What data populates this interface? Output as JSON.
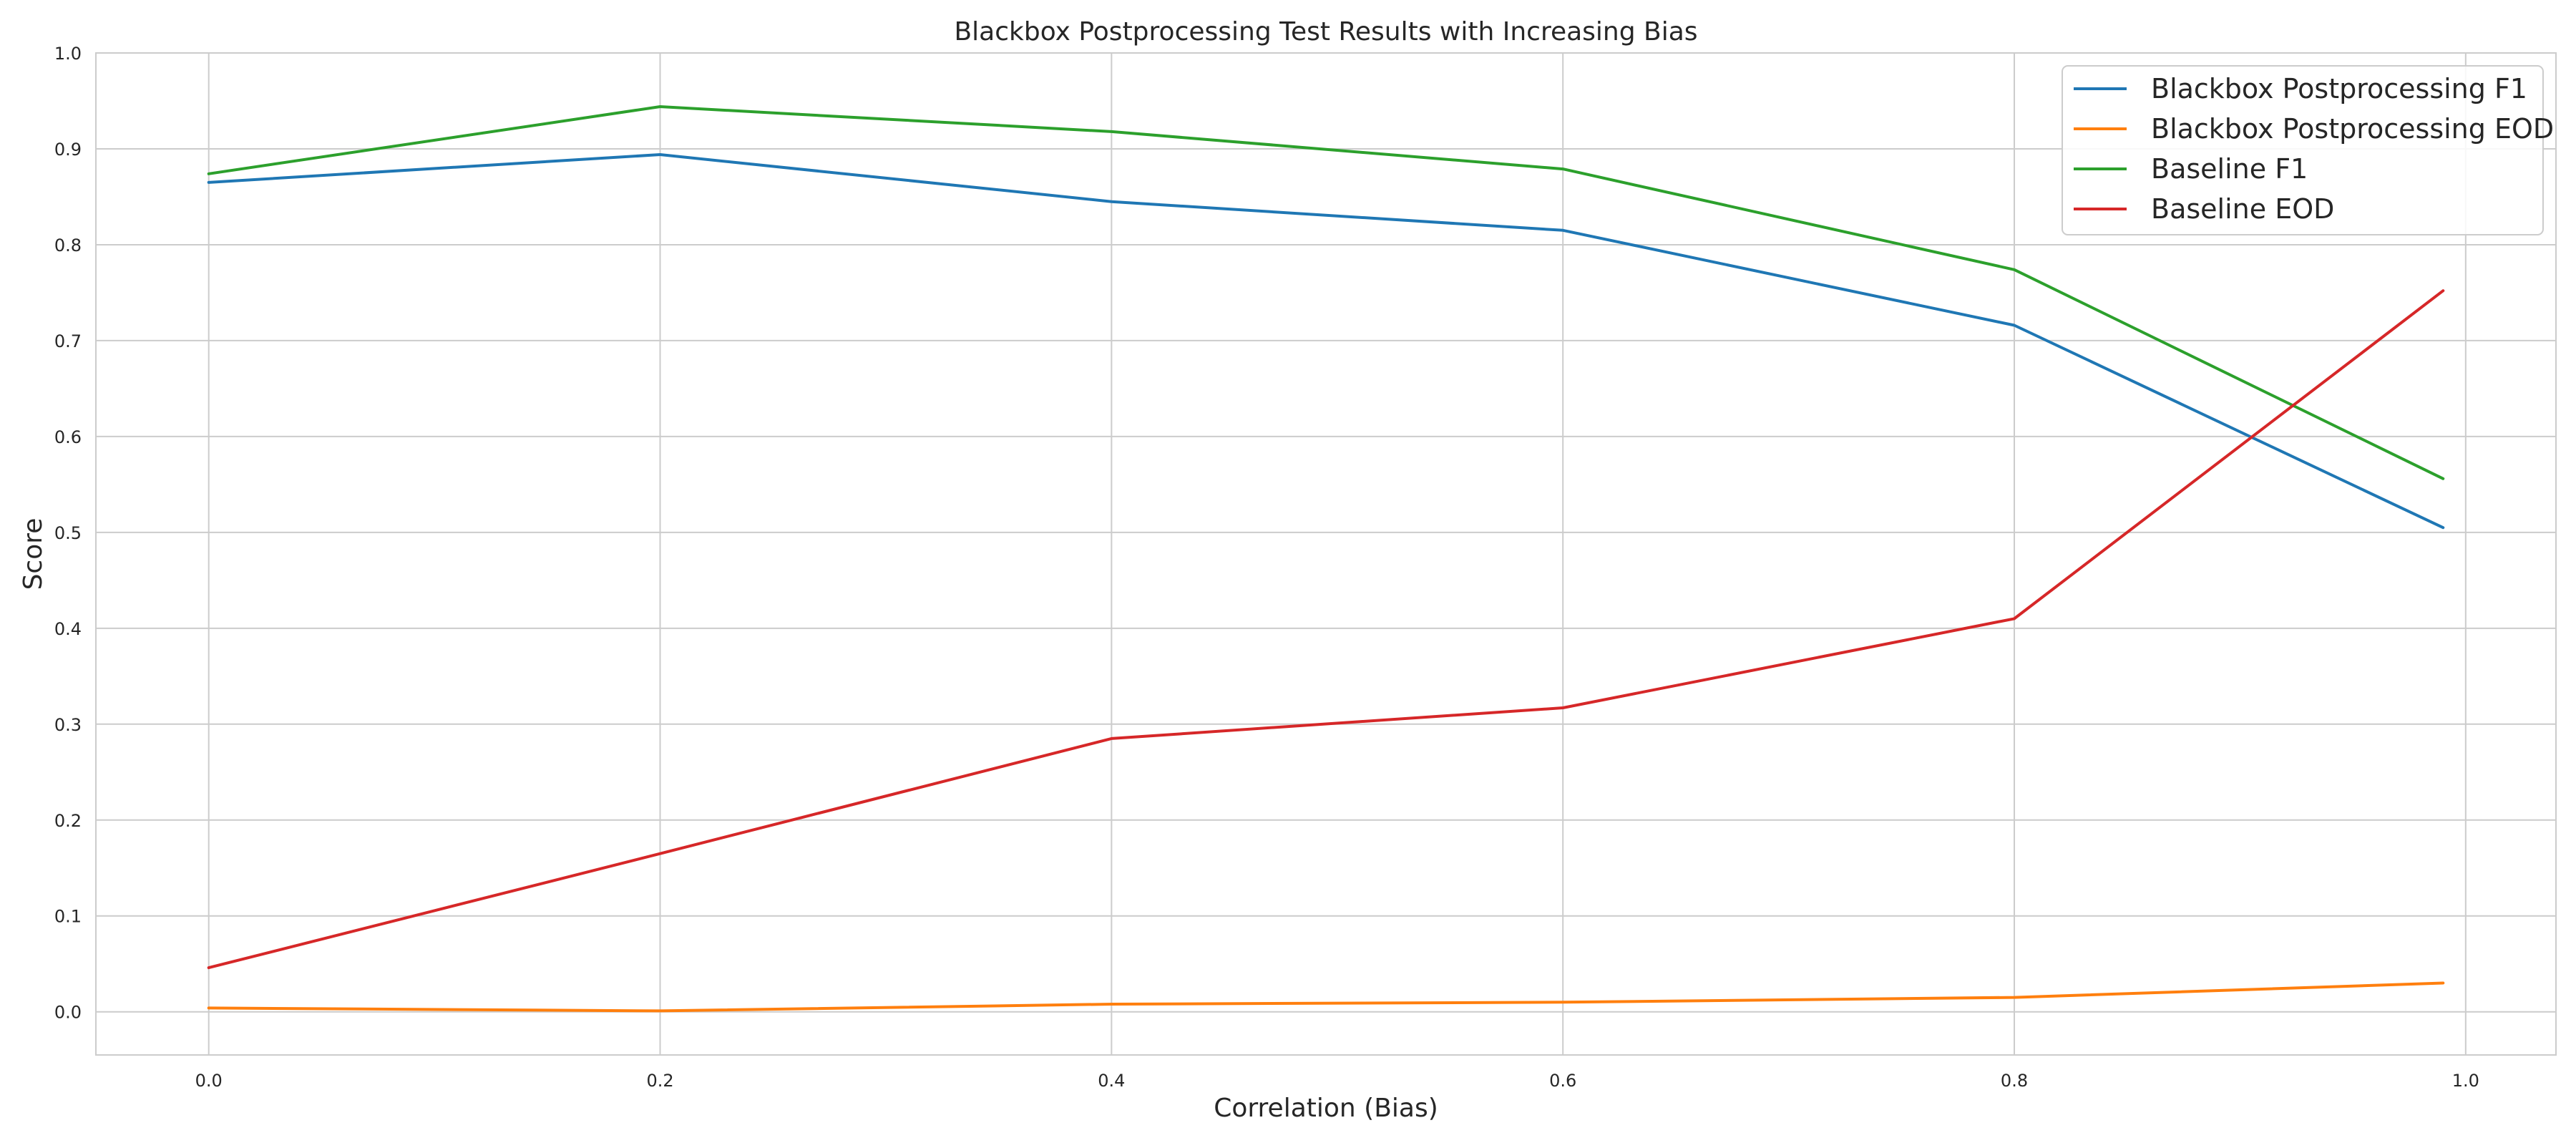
{
  "chart_data": {
    "type": "line",
    "title": "Blackbox Postprocessing Test Results with Increasing Bias",
    "xlabel": "Correlation (Bias)",
    "ylabel": "Score",
    "xlim": [
      -0.05,
      1.04
    ],
    "ylim": [
      -0.045,
      1.0
    ],
    "xticks": [
      "0.0",
      "0.2",
      "0.4",
      "0.6",
      "0.8",
      "1.0"
    ],
    "xtick_values": [
      0.0,
      0.2,
      0.4,
      0.6,
      0.8,
      1.0
    ],
    "yticks": [
      "0.0",
      "0.1",
      "0.2",
      "0.3",
      "0.4",
      "0.5",
      "0.6",
      "0.7",
      "0.8",
      "0.9",
      "1.0"
    ],
    "ytick_values": [
      0.0,
      0.1,
      0.2,
      0.3,
      0.4,
      0.5,
      0.6,
      0.7,
      0.8,
      0.9,
      1.0
    ],
    "grid": true,
    "legend_position": "top-right",
    "x": [
      0.0,
      0.2,
      0.4,
      0.6,
      0.8,
      0.99
    ],
    "series": [
      {
        "name": "Blackbox Postprocessing F1",
        "color": "#1f77b4",
        "values": [
          0.865,
          0.894,
          0.845,
          0.815,
          0.716,
          0.505
        ]
      },
      {
        "name": "Blackbox Postprocessing EOD",
        "color": "#ff7f0e",
        "values": [
          0.004,
          0.001,
          0.008,
          0.01,
          0.015,
          0.03
        ]
      },
      {
        "name": "Baseline F1",
        "color": "#2ca02c",
        "values": [
          0.874,
          0.944,
          0.918,
          0.879,
          0.774,
          0.556
        ]
      },
      {
        "name": "Baseline EOD",
        "color": "#d62728",
        "values": [
          0.046,
          0.165,
          0.285,
          0.317,
          0.41,
          0.752
        ]
      }
    ]
  }
}
